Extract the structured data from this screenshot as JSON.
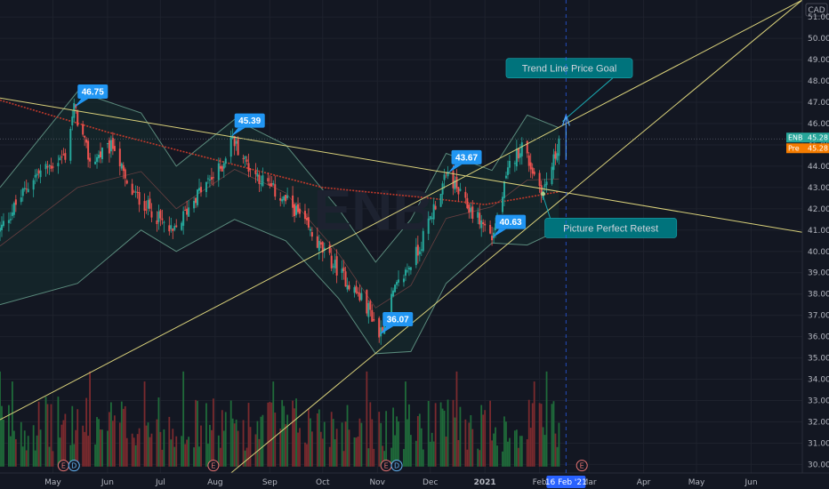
{
  "symbol_watermark": "ENB",
  "currency": "CAD",
  "colors": {
    "background": "#131722",
    "up": "#26a69a",
    "down": "#ef5350",
    "vol_up": "#1f6b3a",
    "vol_down": "#7a2a2e",
    "trendline": "#d8d07a",
    "ma": "#c0392b",
    "band_line": "#5a8a7c",
    "band_fill": "#16302f",
    "callout": "#2196f3",
    "note_fill": "#00737c",
    "price_tag": "#26a69a",
    "pre_tag": "#f57c00"
  },
  "chart_data": {
    "type": "candlestick",
    "y_axis_ticks": [
      "30.00",
      "31.00",
      "32.00",
      "33.00",
      "34.00",
      "35.00",
      "36.00",
      "37.00",
      "38.00",
      "39.00",
      "40.00",
      "41.00",
      "42.00",
      "43.00",
      "44.00",
      "45.00",
      "46.00",
      "47.00",
      "48.00",
      "49.00",
      "50.00",
      "51.00"
    ],
    "ylim": [
      29.6,
      51.8
    ],
    "x_axis_ticks": [
      "May",
      "Jun",
      "Jul",
      "Aug",
      "Sep",
      "Oct",
      "Nov",
      "Dec",
      "2021",
      "Feb",
      "Mar",
      "Apr",
      "May",
      "Jun"
    ],
    "x_date_range": [
      "2020-04-01",
      "2021-06-30"
    ],
    "x_tick_dates": [
      "2020-05-01",
      "2020-06-01",
      "2020-07-01",
      "2020-08-01",
      "2020-09-01",
      "2020-10-01",
      "2020-11-01",
      "2020-12-01",
      "2021-01-01",
      "2021-02-01",
      "2021-03-01",
      "2021-04-01",
      "2021-05-01",
      "2021-06-01"
    ],
    "price_path": [
      {
        "date": "2020-04-01",
        "price": 41.0
      },
      {
        "date": "2020-04-20",
        "price": 43.5
      },
      {
        "date": "2020-05-08",
        "price": 44.5
      },
      {
        "date": "2020-05-13",
        "price": 46.75
      },
      {
        "date": "2020-05-22",
        "price": 44.2
      },
      {
        "date": "2020-06-05",
        "price": 45.0
      },
      {
        "date": "2020-06-12",
        "price": 43.0
      },
      {
        "date": "2020-06-25",
        "price": 42.0
      },
      {
        "date": "2020-07-08",
        "price": 40.8
      },
      {
        "date": "2020-07-20",
        "price": 42.5
      },
      {
        "date": "2020-08-05",
        "price": 44.0
      },
      {
        "date": "2020-08-10",
        "price": 45.39
      },
      {
        "date": "2020-08-20",
        "price": 44.0
      },
      {
        "date": "2020-09-01",
        "price": 43.0
      },
      {
        "date": "2020-09-15",
        "price": 42.0
      },
      {
        "date": "2020-10-01",
        "price": 40.0
      },
      {
        "date": "2020-10-15",
        "price": 38.6
      },
      {
        "date": "2020-10-28",
        "price": 37.2
      },
      {
        "date": "2020-11-02",
        "price": 36.07
      },
      {
        "date": "2020-11-10",
        "price": 38.0
      },
      {
        "date": "2020-11-25",
        "price": 40.2
      },
      {
        "date": "2020-12-05",
        "price": 42.5
      },
      {
        "date": "2020-12-11",
        "price": 43.67
      },
      {
        "date": "2020-12-20",
        "price": 42.3
      },
      {
        "date": "2021-01-01",
        "price": 41.2
      },
      {
        "date": "2021-01-05",
        "price": 40.63
      },
      {
        "date": "2021-01-15",
        "price": 44.0
      },
      {
        "date": "2021-01-22",
        "price": 45.0
      },
      {
        "date": "2021-01-29",
        "price": 43.6
      },
      {
        "date": "2021-02-03",
        "price": 42.8
      },
      {
        "date": "2021-02-10",
        "price": 44.5
      },
      {
        "date": "2021-02-12",
        "price": 45.28
      }
    ],
    "ma_path": [
      {
        "date": "2020-04-01",
        "price": 47.1
      },
      {
        "date": "2020-06-01",
        "price": 45.6
      },
      {
        "date": "2020-08-01",
        "price": 44.3
      },
      {
        "date": "2020-10-01",
        "price": 43.0
      },
      {
        "date": "2020-12-01",
        "price": 42.5
      },
      {
        "date": "2021-01-01",
        "price": 42.2
      },
      {
        "date": "2021-02-12",
        "price": 42.8
      }
    ],
    "band_upper": [
      {
        "date": "2020-04-01",
        "price": 43.0
      },
      {
        "date": "2020-05-15",
        "price": 47.5
      },
      {
        "date": "2020-06-20",
        "price": 46.5
      },
      {
        "date": "2020-07-10",
        "price": 44.0
      },
      {
        "date": "2020-08-12",
        "price": 46.2
      },
      {
        "date": "2020-09-10",
        "price": 45.0
      },
      {
        "date": "2020-10-10",
        "price": 42.0
      },
      {
        "date": "2020-10-31",
        "price": 39.5
      },
      {
        "date": "2020-11-20",
        "price": 41.5
      },
      {
        "date": "2020-12-10",
        "price": 44.6
      },
      {
        "date": "2021-01-05",
        "price": 43.8
      },
      {
        "date": "2021-01-25",
        "price": 46.4
      },
      {
        "date": "2021-02-12",
        "price": 45.8
      }
    ],
    "band_lower": [
      {
        "date": "2020-04-01",
        "price": 37.5
      },
      {
        "date": "2020-05-15",
        "price": 38.5
      },
      {
        "date": "2020-06-20",
        "price": 41.0
      },
      {
        "date": "2020-07-10",
        "price": 40.0
      },
      {
        "date": "2020-08-12",
        "price": 41.5
      },
      {
        "date": "2020-09-10",
        "price": 40.5
      },
      {
        "date": "2020-10-10",
        "price": 37.8
      },
      {
        "date": "2020-10-31",
        "price": 35.2
      },
      {
        "date": "2020-11-20",
        "price": 35.3
      },
      {
        "date": "2020-12-10",
        "price": 38.5
      },
      {
        "date": "2021-01-05",
        "price": 40.4
      },
      {
        "date": "2021-01-25",
        "price": 40.3
      },
      {
        "date": "2021-02-12",
        "price": 41.0
      }
    ],
    "trendlines": [
      {
        "from": {
          "date": "2020-04-01",
          "price": 47.2
        },
        "to": {
          "date": "2021-06-30",
          "price": 40.9
        }
      },
      {
        "from": {
          "date": "2020-04-01",
          "price": 32.1
        },
        "to": {
          "date": "2021-06-30",
          "price": 51.8
        }
      },
      {
        "from": {
          "date": "2020-08-10",
          "price": 29.6
        },
        "to": {
          "date": "2021-06-30",
          "price": 51.8
        }
      }
    ],
    "callouts": [
      {
        "label": "46.75",
        "date": "2020-05-13",
        "price": 46.75
      },
      {
        "label": "45.39",
        "date": "2020-08-10",
        "price": 45.39
      },
      {
        "label": "43.67",
        "date": "2020-12-11",
        "price": 43.67
      },
      {
        "label": "40.63",
        "date": "2021-01-05",
        "price": 40.63
      },
      {
        "label": "36.07",
        "date": "2020-11-02",
        "price": 36.07
      }
    ],
    "annotations": [
      {
        "text": "Trend Line Price Goal",
        "date": "2021-01-13",
        "price": 48.6
      },
      {
        "text": "Picture Perfect Retest",
        "date": "2021-02-04",
        "price": 41.1
      }
    ],
    "price_tags": [
      {
        "symbol": "ENB",
        "value": "45.28"
      },
      {
        "symbol": "Pre",
        "value": "45.28"
      }
    ],
    "current_price": 45.28,
    "crosshair_date_label": "16 Feb '21",
    "event_markers": [
      {
        "date": "2020-05-07",
        "type": "E"
      },
      {
        "date": "2020-05-13",
        "type": "D"
      },
      {
        "date": "2020-07-31",
        "type": "E"
      },
      {
        "date": "2020-11-06",
        "type": "E"
      },
      {
        "date": "2020-11-12",
        "type": "D"
      },
      {
        "date": "2021-02-25",
        "type": "E"
      }
    ]
  }
}
